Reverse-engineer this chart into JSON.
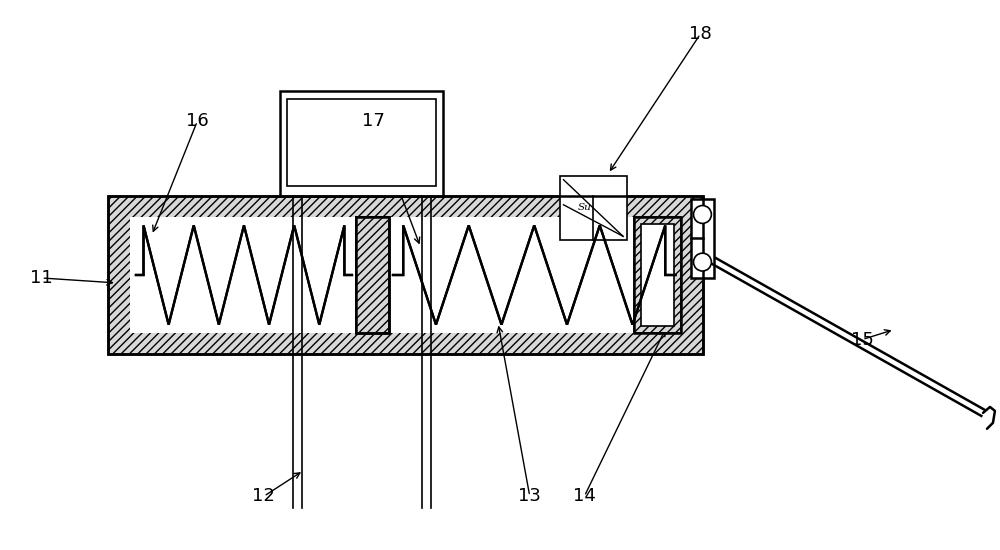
{
  "bg_color": "#ffffff",
  "line_color": "#000000",
  "fig_width": 10.0,
  "fig_height": 5.5,
  "lw_main": 1.8,
  "lw_thin": 1.2,
  "label_fs": 13,
  "hatch_fc": "#d8d8d8"
}
